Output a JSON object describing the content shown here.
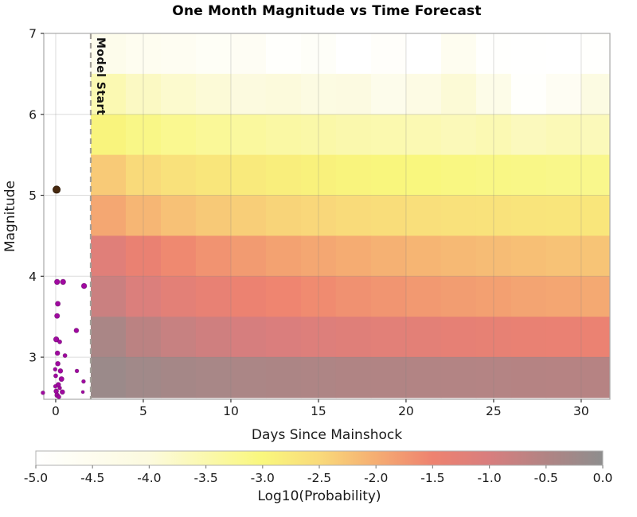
{
  "chart_data": {
    "type": "heatmap",
    "title": "One Month Magnitude vs Time Forecast",
    "xlabel": "Days Since Mainshock",
    "ylabel": "Magnitude",
    "x_range": [
      -0.68,
      31.64
    ],
    "y_range": [
      2.48,
      7.0
    ],
    "x_ticks": [
      0,
      5,
      10,
      15,
      20,
      25,
      30
    ],
    "y_ticks": [
      3,
      4,
      5,
      6,
      7
    ],
    "grid": true,
    "model_start": {
      "day": 2,
      "label": "Model Start"
    },
    "heatmap": {
      "time_bin_start_day": 2,
      "time_bin_width_days": 2,
      "n_time_bins": 15,
      "mag_top": 7.0,
      "mag_bin_height": 0.5,
      "value_units": "log10_probability",
      "rows_top_to_bottom": [
        {
          "mag_bin": "6.5-7.0",
          "values": [
            -4.4,
            -4.55,
            -4.62,
            -4.72,
            -4.66,
            -4.92,
            -4.78,
            -5.0,
            -4.86,
            -5.0,
            -4.55,
            -4.95,
            -4.98,
            -5.0,
            -4.94
          ]
        },
        {
          "mag_bin": "6.0-6.5",
          "values": [
            -3.55,
            -3.72,
            -3.84,
            -3.93,
            -4.02,
            -3.98,
            -4.12,
            -4.08,
            -4.4,
            -4.18,
            -3.92,
            -4.3,
            -4.9,
            -4.65,
            -4.12
          ]
        },
        {
          "mag_bin": "5.5-6.0",
          "values": [
            -2.95,
            -3.1,
            -3.2,
            -3.28,
            -3.34,
            -3.4,
            -3.44,
            -3.49,
            -3.52,
            -3.56,
            -3.62,
            -3.56,
            -3.66,
            -3.6,
            -3.63
          ]
        },
        {
          "mag_bin": "5.0-5.5",
          "values": [
            -2.32,
            -2.5,
            -2.62,
            -2.71,
            -2.78,
            -2.84,
            -2.89,
            -2.94,
            -2.98,
            -3.01,
            -3.05,
            -3.08,
            -3.1,
            -3.13,
            -3.15
          ]
        },
        {
          "mag_bin": "4.5-5.0",
          "values": [
            -1.93,
            -2.1,
            -2.22,
            -2.31,
            -2.37,
            -2.43,
            -2.47,
            -2.52,
            -2.55,
            -2.59,
            -2.62,
            -2.64,
            -2.67,
            -2.69,
            -2.71
          ]
        },
        {
          "mag_bin": "4.0-4.5",
          "values": [
            -1.18,
            -1.42,
            -1.58,
            -1.7,
            -1.79,
            -1.87,
            -1.93,
            -1.99,
            -2.04,
            -2.09,
            -2.13,
            -2.17,
            -2.2,
            -2.23,
            -2.26
          ]
        },
        {
          "mag_bin": "3.5-4.0",
          "values": [
            -0.82,
            -1.07,
            -1.24,
            -1.36,
            -1.46,
            -1.54,
            -1.61,
            -1.67,
            -1.72,
            -1.77,
            -1.81,
            -1.85,
            -1.89,
            -1.92,
            -1.95
          ]
        },
        {
          "mag_bin": "3.0-3.5",
          "values": [
            -0.4,
            -0.63,
            -0.78,
            -0.89,
            -0.98,
            -1.05,
            -1.11,
            -1.17,
            -1.22,
            -1.26,
            -1.31,
            -1.34,
            -1.38,
            -1.41,
            -1.44
          ]
        },
        {
          "mag_bin": "2.5-3.0",
          "values": [
            -0.18,
            -0.27,
            -0.33,
            -0.37,
            -0.41,
            -0.43,
            -0.46,
            -0.48,
            -0.5,
            -0.51,
            -0.53,
            -0.54,
            -0.55,
            -0.56,
            -0.57
          ]
        }
      ]
    },
    "colormap_stops": [
      {
        "value": -5.0,
        "color": "#ffffff"
      },
      {
        "value": -4.0,
        "color": "#fcfade"
      },
      {
        "value": -3.0,
        "color": "#f9f77d"
      },
      {
        "value": -2.5,
        "color": "#f9da7a"
      },
      {
        "value": -2.0,
        "color": "#f5ad72"
      },
      {
        "value": -1.5,
        "color": "#ee8270"
      },
      {
        "value": -1.0,
        "color": "#d87e7e"
      },
      {
        "value": -0.5,
        "color": "#b18484"
      },
      {
        "value": 0.0,
        "color": "#8e8e8e"
      }
    ],
    "mainshock": {
      "day": 0.05,
      "mag": 5.07,
      "r": 4.6,
      "color": "#48290f"
    },
    "aftershocks": {
      "color": "#a009a0",
      "points": [
        {
          "day": 0.08,
          "mag": 3.93,
          "r": 3.4
        },
        {
          "day": 0.42,
          "mag": 3.93,
          "r": 3.4
        },
        {
          "day": 1.62,
          "mag": 3.88,
          "r": 3.4
        },
        {
          "day": 0.12,
          "mag": 3.66,
          "r": 3.2
        },
        {
          "day": 0.08,
          "mag": 3.51,
          "r": 3.2
        },
        {
          "day": 1.18,
          "mag": 3.33,
          "r": 3.0
        },
        {
          "day": 0.03,
          "mag": 3.22,
          "r": 3.4
        },
        {
          "day": 0.23,
          "mag": 3.19,
          "r": 2.6
        },
        {
          "day": 0.1,
          "mag": 3.05,
          "r": 3.0
        },
        {
          "day": 0.53,
          "mag": 3.02,
          "r": 2.6
        },
        {
          "day": 0.12,
          "mag": 2.92,
          "r": 3.0
        },
        {
          "day": -0.03,
          "mag": 2.85,
          "r": 2.4
        },
        {
          "day": 0.27,
          "mag": 2.83,
          "r": 3.0
        },
        {
          "day": 1.21,
          "mag": 2.83,
          "r": 2.4
        },
        {
          "day": 0.0,
          "mag": 2.77,
          "r": 2.6
        },
        {
          "day": 0.33,
          "mag": 2.73,
          "r": 3.2
        },
        {
          "day": 1.59,
          "mag": 2.7,
          "r": 2.4
        },
        {
          "day": 0.15,
          "mag": 2.66,
          "r": 3.0
        },
        {
          "day": -0.02,
          "mag": 2.64,
          "r": 2.4
        },
        {
          "day": 0.23,
          "mag": 2.62,
          "r": 2.4
        },
        {
          "day": 0.03,
          "mag": 2.58,
          "r": 3.0
        },
        {
          "day": 0.38,
          "mag": 2.57,
          "r": 3.0
        },
        {
          "day": -0.73,
          "mag": 2.56,
          "r": 2.4
        },
        {
          "day": 1.55,
          "mag": 2.57,
          "r": 2.0
        },
        {
          "day": 0.08,
          "mag": 2.53,
          "r": 3.0
        },
        {
          "day": 0.18,
          "mag": 2.51,
          "r": 2.6
        }
      ]
    },
    "colorbar": {
      "min": -5.0,
      "max": 0.0,
      "tick_labels": [
        "-5.0",
        "-4.5",
        "-4.0",
        "-3.5",
        "-3.0",
        "-2.5",
        "-2.0",
        "-1.5",
        "-1.0",
        "-0.5",
        "0.0"
      ],
      "label": "Log10(Probability)",
      "position": "bottom"
    }
  }
}
